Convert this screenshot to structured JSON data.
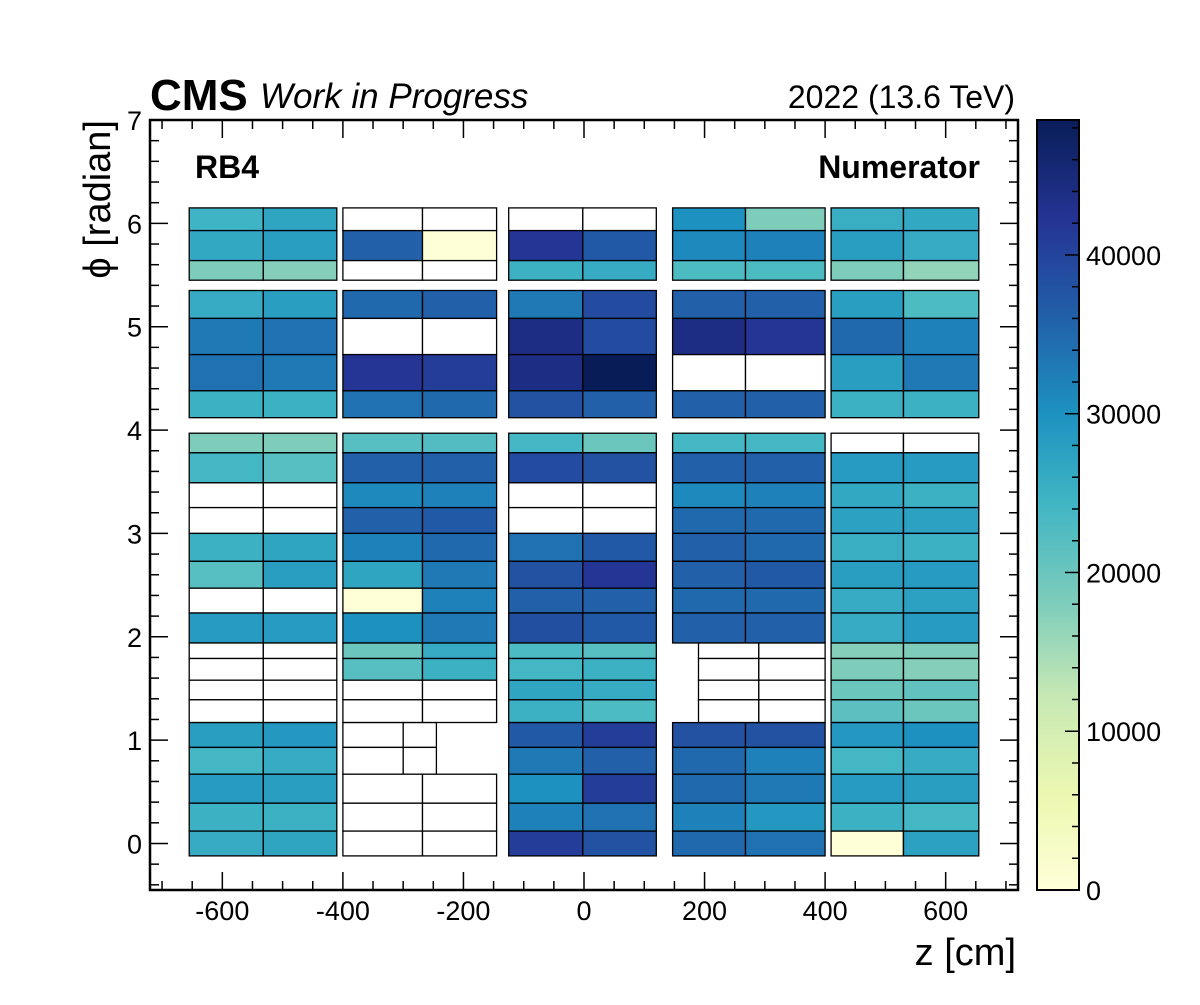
{
  "chart_data": {
    "type": "heatmap",
    "header": {
      "experiment": "CMS",
      "status": "Work in Progress",
      "run": "2022 (13.6 TeV)"
    },
    "annotations": {
      "station": "RB4",
      "label": "Numerator"
    },
    "xlabel": "z [cm]",
    "ylabel": "ϕ [radian]",
    "xlim": [
      -720,
      720
    ],
    "ylim": [
      -0.45,
      7
    ],
    "xticks": [
      -600,
      -400,
      -200,
      0,
      200,
      400,
      600
    ],
    "yticks": [
      0,
      1,
      2,
      3,
      4,
      5,
      6,
      7
    ],
    "colorbar": {
      "min": 0,
      "max": 48500,
      "ticks": [
        0,
        10000,
        20000,
        30000,
        40000
      ],
      "palette": "yellow-green-blue"
    },
    "wheels": [
      {
        "z": [
          -655,
          -532,
          -410
        ],
        "rows": [
          [
            5.93,
            6.15,
            24500,
            27000
          ],
          [
            5.64,
            5.93,
            26500,
            28000
          ],
          [
            5.45,
            5.64,
            18000,
            17500
          ],
          [
            5.08,
            5.35,
            26000,
            28000
          ],
          [
            4.73,
            5.08,
            33000,
            34000
          ],
          [
            4.38,
            4.73,
            34000,
            33000
          ],
          [
            4.12,
            4.38,
            25000,
            25000
          ],
          [
            3.78,
            3.97,
            18000,
            18000
          ],
          [
            3.49,
            3.78,
            24000,
            22000
          ],
          [
            3.25,
            3.49,
            null,
            null
          ],
          [
            3.0,
            3.25,
            null,
            null
          ],
          [
            2.73,
            3.0,
            25000,
            27000
          ],
          [
            2.47,
            2.73,
            22000,
            28000
          ],
          [
            2.23,
            2.47,
            null,
            null
          ],
          [
            1.94,
            2.23,
            28500,
            28500
          ],
          [
            1.79,
            1.94,
            null,
            null
          ],
          [
            1.58,
            1.79,
            null,
            null
          ],
          [
            1.39,
            1.58,
            null,
            null
          ],
          [
            1.17,
            1.39,
            null,
            null
          ],
          [
            0.93,
            1.17,
            28000,
            29000
          ],
          [
            0.67,
            0.93,
            24000,
            26000
          ],
          [
            0.39,
            0.67,
            28500,
            28000
          ],
          [
            0.12,
            0.39,
            25000,
            25000
          ],
          [
            -0.12,
            0.12,
            26000,
            27000
          ]
        ]
      },
      {
        "z": [
          -400,
          -268,
          -145
        ],
        "rows": [
          [
            5.93,
            6.15,
            null,
            null
          ],
          [
            5.64,
            5.93,
            36000,
            300
          ],
          [
            5.45,
            5.64,
            null,
            null
          ],
          [
            5.08,
            5.35,
            35000,
            36000
          ],
          [
            4.73,
            5.08,
            null,
            null
          ],
          [
            4.38,
            4.73,
            42000,
            41000
          ],
          [
            4.12,
            4.38,
            34000,
            35000
          ],
          [
            3.78,
            3.97,
            22000,
            22500
          ],
          [
            3.49,
            3.78,
            36000,
            36000
          ],
          [
            3.25,
            3.49,
            31000,
            32000
          ],
          [
            3.0,
            3.25,
            36000,
            37000
          ],
          [
            2.73,
            3.0,
            32000,
            35000
          ],
          [
            2.47,
            2.73,
            27000,
            33000
          ],
          [
            2.23,
            2.47,
            500,
            32000
          ],
          [
            1.94,
            2.23,
            30000,
            33000
          ],
          [
            1.79,
            1.94,
            20000,
            26000
          ],
          [
            1.58,
            1.79,
            22000,
            25000
          ],
          [
            1.39,
            1.58,
            null,
            null
          ],
          [
            1.17,
            1.39,
            null,
            null
          ]
        ]
      },
      {
        "z": [
          -125,
          -2,
          120
        ],
        "rows": [
          [
            5.93,
            6.15,
            null,
            null
          ],
          [
            5.64,
            5.93,
            42000,
            37000
          ],
          [
            5.45,
            5.64,
            25000,
            26000
          ],
          [
            5.08,
            5.35,
            33000,
            39000
          ],
          [
            4.73,
            5.08,
            44000,
            39000
          ],
          [
            4.38,
            4.73,
            44000,
            48500
          ],
          [
            4.12,
            4.38,
            38000,
            36000
          ],
          [
            3.78,
            3.97,
            24000,
            20000
          ],
          [
            3.49,
            3.78,
            39000,
            38000
          ],
          [
            3.25,
            3.49,
            null,
            null
          ],
          [
            3.0,
            3.25,
            null,
            null
          ],
          [
            2.73,
            3.0,
            34000,
            37000
          ],
          [
            2.47,
            2.73,
            38000,
            42000
          ],
          [
            2.23,
            2.47,
            36000,
            36000
          ],
          [
            1.94,
            2.23,
            38500,
            37000
          ],
          [
            1.79,
            1.94,
            23000,
            22000
          ],
          [
            1.58,
            1.79,
            24000,
            25000
          ],
          [
            1.39,
            1.58,
            27000,
            26000
          ],
          [
            1.17,
            1.39,
            25000,
            23000
          ]
        ]
      },
      {
        "z": [
          147,
          268,
          400
        ],
        "rows": [
          [
            5.93,
            6.15,
            30000,
            18000
          ],
          [
            5.64,
            5.93,
            31000,
            32000
          ],
          [
            5.45,
            5.64,
            23000,
            23000
          ],
          [
            5.08,
            5.35,
            36000,
            36000
          ],
          [
            4.73,
            5.08,
            44000,
            42000
          ],
          [
            4.38,
            4.73,
            null,
            null
          ],
          [
            4.12,
            4.38,
            36000,
            36000
          ],
          [
            3.78,
            3.97,
            24000,
            24000
          ],
          [
            3.49,
            3.78,
            36000,
            36000
          ],
          [
            3.25,
            3.49,
            31000,
            32000
          ],
          [
            3.0,
            3.25,
            35000,
            35000
          ],
          [
            2.73,
            3.0,
            36000,
            35000
          ],
          [
            2.47,
            2.73,
            36000,
            37000
          ],
          [
            2.23,
            2.47,
            35000,
            35000
          ],
          [
            1.94,
            2.23,
            36000,
            36000
          ]
        ]
      },
      {
        "z": [
          410,
          530,
          655
        ],
        "rows": [
          [
            5.93,
            6.15,
            25500,
            26500
          ],
          [
            5.64,
            5.93,
            28000,
            26000
          ],
          [
            5.45,
            5.64,
            18000,
            16500
          ],
          [
            5.08,
            5.35,
            28000,
            23000
          ],
          [
            4.73,
            5.08,
            35000,
            32000
          ],
          [
            4.38,
            4.73,
            28000,
            33000
          ],
          [
            4.12,
            4.38,
            25000,
            25000
          ],
          [
            3.78,
            3.97,
            null,
            null
          ],
          [
            3.49,
            3.78,
            28500,
            28500
          ],
          [
            3.25,
            3.49,
            26500,
            25000
          ],
          [
            3.0,
            3.25,
            27500,
            27500
          ],
          [
            2.73,
            3.0,
            25500,
            25000
          ],
          [
            2.47,
            2.73,
            28000,
            28500
          ],
          [
            2.23,
            2.47,
            26000,
            27500
          ],
          [
            1.94,
            2.23,
            26000,
            28500
          ],
          [
            1.79,
            1.94,
            17500,
            18000
          ],
          [
            1.58,
            1.79,
            18000,
            17500
          ],
          [
            1.39,
            1.58,
            20000,
            21000
          ],
          [
            1.17,
            1.39,
            21500,
            20000
          ],
          [
            0.93,
            1.17,
            29000,
            30000
          ],
          [
            0.67,
            0.93,
            24000,
            26000
          ],
          [
            0.39,
            0.67,
            28500,
            28000
          ],
          [
            0.12,
            0.39,
            25000,
            24000
          ],
          [
            -0.12,
            0.12,
            300,
            27500
          ]
        ]
      },
      {
        "z": [
          -400,
          -300,
          -245
        ],
        "rows": [
          [
            0.93,
            1.17,
            null,
            null
          ],
          [
            0.67,
            0.93,
            null,
            null
          ]
        ]
      },
      {
        "z": [
          -400,
          -268,
          -145
        ],
        "rows": [
          [
            0.39,
            0.67,
            null,
            null
          ],
          [
            0.12,
            0.39,
            null,
            null
          ],
          [
            -0.12,
            0.12,
            null,
            null
          ]
        ]
      },
      {
        "z": [
          -125,
          -2,
          120
        ],
        "rows": [
          [
            0.93,
            1.17,
            37000,
            41000
          ],
          [
            0.67,
            0.93,
            33000,
            36000
          ],
          [
            0.39,
            0.67,
            30000,
            41000
          ],
          [
            0.12,
            0.39,
            32000,
            34000
          ],
          [
            -0.12,
            0.12,
            41000,
            38000
          ]
        ]
      },
      {
        "z": [
          147,
          268,
          400
        ],
        "rows": [
          [
            0.93,
            1.17,
            38000,
            38000
          ],
          [
            0.67,
            0.93,
            35000,
            32000
          ],
          [
            0.39,
            0.67,
            35000,
            33000
          ],
          [
            0.12,
            0.39,
            32000,
            29000
          ],
          [
            -0.12,
            0.12,
            35000,
            34000
          ]
        ]
      },
      {
        "z": [
          190,
          290,
          400
        ],
        "rows": [
          [
            1.79,
            1.94,
            null,
            null
          ],
          [
            1.58,
            1.79,
            null,
            null
          ],
          [
            1.39,
            1.58,
            null,
            null
          ],
          [
            1.17,
            1.39,
            null,
            null
          ]
        ]
      }
    ]
  }
}
